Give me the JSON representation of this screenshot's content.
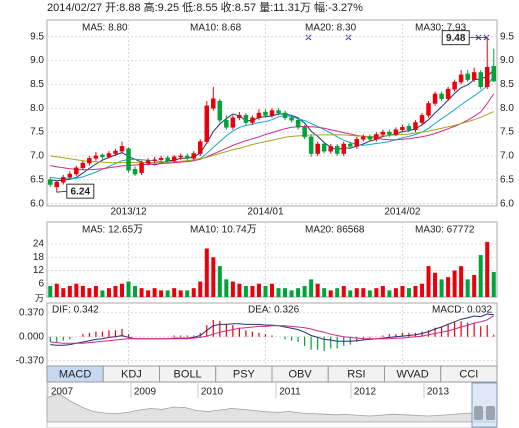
{
  "header": {
    "info": "2014/02/27 开:8.88 高:9.25 低:8.55 收:8.57 量:11.31万 幅:-3.27%"
  },
  "chart_data": [
    {
      "type": "candlestick",
      "categories": [
        null,
        null,
        null,
        null,
        null,
        null,
        null,
        null,
        null,
        null,
        null,
        null,
        "2013/12",
        null,
        null,
        null,
        null,
        null,
        null,
        null,
        null,
        null,
        null,
        null,
        null,
        null,
        null,
        null,
        null,
        null,
        null,
        null,
        null,
        "2014/01",
        null,
        null,
        null,
        null,
        null,
        null,
        null,
        null,
        null,
        null,
        null,
        null,
        null,
        null,
        null,
        null,
        null,
        null,
        null,
        null,
        "2014/02",
        null,
        null,
        null,
        null,
        null,
        null,
        null,
        null,
        null,
        null,
        null,
        null,
        null,
        null
      ],
      "open": [
        6.5,
        6.35,
        6.45,
        6.55,
        6.62,
        6.75,
        6.85,
        6.95,
        7.02,
        6.98,
        7.05,
        7.1,
        7.15,
        6.72,
        6.65,
        6.85,
        6.9,
        6.92,
        6.96,
        6.9,
        6.98,
        7.0,
        6.95,
        7.05,
        7.3,
        8.0,
        8.15,
        7.75,
        7.6,
        7.8,
        7.85,
        7.7,
        7.8,
        7.92,
        7.85,
        7.95,
        7.9,
        7.8,
        7.75,
        7.6,
        7.4,
        7.05,
        7.25,
        7.1,
        7.2,
        7.05,
        7.25,
        7.2,
        7.35,
        7.4,
        7.35,
        7.45,
        7.5,
        7.45,
        7.55,
        7.62,
        7.55,
        7.7,
        7.85,
        8.1,
        8.3,
        8.2,
        8.4,
        8.55,
        8.72,
        8.6,
        8.75,
        8.45,
        8.88
      ],
      "high": [
        6.55,
        6.48,
        6.6,
        6.68,
        6.8,
        6.9,
        7.0,
        7.08,
        7.05,
        7.1,
        7.15,
        7.3,
        7.18,
        6.78,
        6.9,
        6.95,
        6.98,
        7.0,
        7.0,
        7.02,
        7.05,
        7.05,
        7.1,
        7.35,
        8.15,
        8.45,
        8.2,
        7.85,
        7.85,
        7.92,
        7.9,
        7.85,
        7.98,
        7.98,
        8.0,
        8.0,
        7.95,
        7.85,
        7.8,
        7.65,
        7.45,
        7.3,
        7.3,
        7.25,
        7.25,
        7.3,
        7.3,
        7.4,
        7.45,
        7.45,
        7.5,
        7.55,
        7.55,
        7.6,
        7.65,
        7.68,
        7.75,
        7.9,
        8.15,
        8.35,
        8.35,
        8.45,
        8.6,
        8.8,
        8.8,
        8.85,
        8.8,
        9.48,
        9.25
      ],
      "low": [
        6.35,
        6.24,
        6.4,
        6.5,
        6.58,
        6.7,
        6.8,
        6.9,
        6.92,
        6.95,
        7.0,
        7.05,
        6.65,
        6.58,
        6.6,
        6.8,
        6.85,
        6.88,
        6.85,
        6.86,
        6.92,
        6.9,
        6.92,
        7.0,
        7.25,
        7.95,
        7.7,
        7.55,
        7.55,
        7.75,
        7.65,
        7.65,
        7.75,
        7.8,
        7.8,
        7.85,
        7.75,
        7.7,
        7.55,
        7.35,
        6.98,
        7.0,
        7.05,
        7.05,
        7.0,
        7.0,
        7.15,
        7.15,
        7.3,
        7.3,
        7.3,
        7.4,
        7.4,
        7.42,
        7.5,
        7.5,
        7.5,
        7.65,
        7.8,
        8.05,
        8.15,
        8.15,
        8.35,
        8.5,
        8.55,
        8.55,
        8.4,
        8.4,
        8.55
      ],
      "close": [
        6.4,
        6.45,
        6.55,
        6.62,
        6.75,
        6.85,
        6.95,
        7.0,
        6.98,
        7.05,
        7.1,
        7.2,
        6.7,
        6.62,
        6.85,
        6.9,
        6.92,
        6.95,
        6.9,
        6.98,
        7.0,
        6.95,
        7.05,
        7.3,
        8.05,
        8.2,
        7.75,
        7.6,
        7.8,
        7.85,
        7.7,
        7.8,
        7.9,
        7.85,
        7.95,
        7.9,
        7.8,
        7.75,
        7.6,
        7.4,
        7.05,
        7.25,
        7.1,
        7.2,
        7.05,
        7.25,
        7.2,
        7.35,
        7.4,
        7.35,
        7.45,
        7.5,
        7.45,
        7.55,
        7.6,
        7.55,
        7.7,
        7.85,
        8.1,
        8.3,
        8.2,
        8.4,
        8.55,
        8.7,
        8.6,
        8.75,
        8.45,
        8.86,
        8.57
      ],
      "up_color": "#e8000b",
      "down_color": "#00a23a",
      "series": [
        {
          "label": "MA5: 8.80",
          "color": "#26307a",
          "values": [
            6.5,
            6.48,
            6.49,
            6.51,
            6.55,
            6.64,
            6.74,
            6.83,
            6.91,
            6.97,
            7.02,
            7.07,
            6.99,
            6.93,
            6.87,
            6.85,
            6.81,
            6.85,
            6.9,
            6.91,
            6.95,
            6.95,
            6.98,
            7.06,
            7.27,
            7.51,
            7.67,
            7.78,
            7.88,
            7.84,
            7.74,
            7.74,
            7.81,
            7.82,
            7.84,
            7.88,
            7.88,
            7.85,
            7.8,
            7.69,
            7.52,
            7.41,
            7.28,
            7.18,
            7.13,
            7.17,
            7.16,
            7.21,
            7.25,
            7.31,
            7.35,
            7.41,
            7.43,
            7.46,
            7.51,
            7.53,
            7.57,
            7.65,
            7.76,
            7.9,
            8.03,
            8.17,
            8.31,
            8.43,
            8.49,
            8.6,
            8.61,
            8.67,
            8.8
          ]
        },
        {
          "label": "MA10: 8.68",
          "color": "#19a6cf",
          "values": [
            6.55,
            6.53,
            6.52,
            6.52,
            6.53,
            6.56,
            6.61,
            6.66,
            6.72,
            6.78,
            6.84,
            6.9,
            6.92,
            6.93,
            6.92,
            6.91,
            6.9,
            6.88,
            6.87,
            6.87,
            6.88,
            6.89,
            6.91,
            6.95,
            7.05,
            7.18,
            7.3,
            7.42,
            7.52,
            7.6,
            7.64,
            7.66,
            7.7,
            7.72,
            7.76,
            7.82,
            7.85,
            7.82,
            7.78,
            7.74,
            7.68,
            7.62,
            7.55,
            7.48,
            7.4,
            7.33,
            7.28,
            7.24,
            7.22,
            7.24,
            7.26,
            7.28,
            7.3,
            7.34,
            7.38,
            7.41,
            7.45,
            7.5,
            7.58,
            7.68,
            7.78,
            7.87,
            7.97,
            8.07,
            8.17,
            8.26,
            8.36,
            8.47,
            8.68
          ]
        },
        {
          "label": "MA20: 8.30",
          "color": "#d42a8c",
          "values": [
            6.8,
            6.77,
            6.75,
            6.73,
            6.72,
            6.71,
            6.71,
            6.72,
            6.73,
            6.75,
            6.77,
            6.79,
            6.8,
            6.81,
            6.82,
            6.82,
            6.83,
            6.84,
            6.85,
            6.86,
            6.87,
            6.88,
            6.9,
            6.93,
            6.98,
            7.04,
            7.1,
            7.16,
            7.22,
            7.27,
            7.32,
            7.36,
            7.4,
            7.45,
            7.49,
            7.53,
            7.57,
            7.6,
            7.61,
            7.62,
            7.61,
            7.6,
            7.58,
            7.55,
            7.52,
            7.49,
            7.46,
            7.43,
            7.41,
            7.39,
            7.37,
            7.35,
            7.34,
            7.34,
            7.35,
            7.36,
            7.38,
            7.4,
            7.43,
            7.47,
            7.52,
            7.57,
            7.62,
            7.68,
            7.75,
            7.83,
            7.92,
            8.1,
            8.3
          ]
        },
        {
          "label": "MA30: 7.93",
          "color": "#a4a61e",
          "values": [
            7.0,
            6.98,
            6.96,
            6.94,
            6.92,
            6.9,
            6.89,
            6.88,
            6.87,
            6.86,
            6.86,
            6.86,
            6.86,
            6.86,
            6.86,
            6.86,
            6.86,
            6.87,
            6.87,
            6.88,
            6.89,
            6.9,
            6.92,
            6.94,
            6.97,
            7.01,
            7.05,
            7.09,
            7.13,
            7.16,
            7.2,
            7.24,
            7.27,
            7.3,
            7.33,
            7.36,
            7.39,
            7.41,
            7.42,
            7.43,
            7.44,
            7.44,
            7.44,
            7.44,
            7.44,
            7.44,
            7.43,
            7.42,
            7.41,
            7.41,
            7.41,
            7.42,
            7.43,
            7.44,
            7.45,
            7.46,
            7.48,
            7.5,
            7.52,
            7.55,
            7.58,
            7.61,
            7.64,
            7.68,
            7.72,
            7.76,
            7.81,
            7.87,
            7.93
          ]
        }
      ],
      "annotations": [
        6.24,
        9.48
      ],
      "ylim": [
        5.95,
        9.85
      ],
      "yticks": [
        {
          "value": 6,
          "label": "6.0"
        },
        6.5,
        {
          "value": 7,
          "label": "7.0"
        },
        7.5,
        {
          "value": 8,
          "label": "8.0"
        },
        8.5,
        {
          "value": 9,
          "label": "9.0"
        },
        9.5
      ],
      "grid": true
    },
    {
      "type": "bar",
      "unit": "万",
      "values": [
        5,
        6,
        4,
        5,
        6,
        5,
        4,
        5,
        3,
        4,
        5,
        6,
        7,
        5,
        4,
        3,
        4,
        3,
        3,
        4,
        3,
        3,
        4,
        7,
        22,
        18,
        14,
        8,
        7,
        6,
        5,
        5,
        6,
        5,
        6,
        4,
        4,
        3,
        4,
        5,
        8,
        6,
        4,
        3,
        4,
        5,
        3,
        4,
        4,
        3,
        4,
        5,
        3,
        4,
        5,
        4,
        5,
        6,
        14,
        11,
        8,
        9,
        12,
        14,
        8,
        10,
        19,
        25,
        11.31
      ],
      "series": [
        {
          "label": "MA5: 12.65万",
          "color": "#26307a"
        },
        {
          "label": "MA10: 10.74万",
          "color": "#19a6cf"
        },
        {
          "label": "MA20: 86568",
          "color": "#d42a8c"
        },
        {
          "label": "MA30: 67772",
          "color": "#a4a61e"
        }
      ],
      "ylim": [
        0,
        34
      ],
      "yticks": [
        6,
        12,
        18,
        24
      ],
      "grid": true
    },
    {
      "type": "macd",
      "values": [
        -0.08,
        -0.08,
        -0.06,
        -0.04,
        0.0,
        0.04,
        0.06,
        0.08,
        0.08,
        0.1,
        0.1,
        0.12,
        0.04,
        0.0,
        0.0,
        0.0,
        0.0,
        0.0,
        0.0,
        0.02,
        0.02,
        0.02,
        0.02,
        0.06,
        0.18,
        0.26,
        0.24,
        0.2,
        0.18,
        0.14,
        0.1,
        0.08,
        0.06,
        0.04,
        0.02,
        0.0,
        -0.04,
        -0.06,
        -0.08,
        -0.14,
        -0.2,
        -0.2,
        -0.22,
        -0.18,
        -0.18,
        -0.14,
        -0.12,
        -0.08,
        -0.04,
        -0.02,
        0.0,
        0.02,
        0.04,
        0.04,
        0.06,
        0.06,
        0.06,
        0.08,
        0.1,
        0.14,
        0.16,
        0.2,
        0.22,
        0.24,
        0.22,
        0.22,
        0.16,
        0.18,
        0.032
      ],
      "value_label": "MACD: 0.032",
      "value_label_color": "#a4a61e",
      "series": [
        {
          "label": "DIF: 0.342",
          "color": "#26307a",
          "values": [
            -0.12,
            -0.13,
            -0.13,
            -0.12,
            -0.1,
            -0.08,
            -0.06,
            -0.04,
            -0.03,
            -0.01,
            0.0,
            0.02,
            -0.01,
            -0.03,
            -0.03,
            -0.03,
            -0.03,
            -0.03,
            -0.03,
            -0.02,
            -0.02,
            -0.02,
            -0.01,
            0.02,
            0.1,
            0.17,
            0.19,
            0.19,
            0.2,
            0.2,
            0.19,
            0.19,
            0.19,
            0.18,
            0.18,
            0.17,
            0.15,
            0.13,
            0.11,
            0.07,
            0.02,
            -0.01,
            -0.04,
            -0.05,
            -0.07,
            -0.07,
            -0.07,
            -0.06,
            -0.05,
            -0.04,
            -0.03,
            -0.02,
            -0.01,
            0.0,
            0.01,
            0.02,
            0.03,
            0.05,
            0.08,
            0.12,
            0.15,
            0.19,
            0.23,
            0.27,
            0.29,
            0.32,
            0.31,
            0.35,
            0.342
          ]
        },
        {
          "label": "DEA: 0.326",
          "color": "#d42a8c",
          "values": [
            -0.08,
            -0.09,
            -0.1,
            -0.1,
            -0.1,
            -0.1,
            -0.09,
            -0.08,
            -0.07,
            -0.06,
            -0.05,
            -0.04,
            -0.03,
            -0.03,
            -0.03,
            -0.03,
            -0.03,
            -0.03,
            -0.03,
            -0.03,
            -0.03,
            -0.03,
            -0.02,
            -0.01,
            0.01,
            0.04,
            0.07,
            0.09,
            0.11,
            0.13,
            0.14,
            0.15,
            0.16,
            0.16,
            0.17,
            0.17,
            0.17,
            0.16,
            0.15,
            0.14,
            0.12,
            0.09,
            0.07,
            0.04,
            0.02,
            0.0,
            -0.01,
            -0.02,
            -0.03,
            -0.03,
            -0.03,
            -0.03,
            -0.03,
            -0.02,
            -0.02,
            -0.01,
            0.0,
            0.01,
            0.03,
            0.05,
            0.07,
            0.09,
            0.12,
            0.15,
            0.18,
            0.21,
            0.23,
            0.26,
            0.326
          ]
        }
      ],
      "up_color": "#e8000b",
      "down_color": "#00a23a",
      "ylim": [
        -0.45,
        0.52
      ],
      "yticks": [
        {
          "value": 0.37,
          "label": "0.370"
        },
        {
          "value": 0,
          "label": "0.000"
        },
        {
          "value": -0.37,
          "label": "-0.370"
        }
      ],
      "grid": true
    }
  ],
  "tabs": {
    "items": [
      "MACD",
      "KDJ",
      "BOLL",
      "PSY",
      "OBV",
      "RSI",
      "WVAD",
      "CCI"
    ],
    "selected": 0
  },
  "navigator": {
    "years": [
      "2007",
      "2009",
      "2010",
      "2011",
      "2012",
      "2013"
    ],
    "values": [
      80,
      95,
      70,
      50,
      35,
      30,
      28,
      32,
      40,
      45,
      42,
      50,
      48,
      38,
      35,
      40,
      45,
      42,
      38,
      34,
      32,
      35,
      30,
      28,
      26,
      24,
      25,
      22,
      20,
      23,
      26,
      24,
      22,
      20,
      22,
      25,
      28,
      30,
      34,
      40
    ],
    "ylim": [
      0,
      100
    ]
  }
}
